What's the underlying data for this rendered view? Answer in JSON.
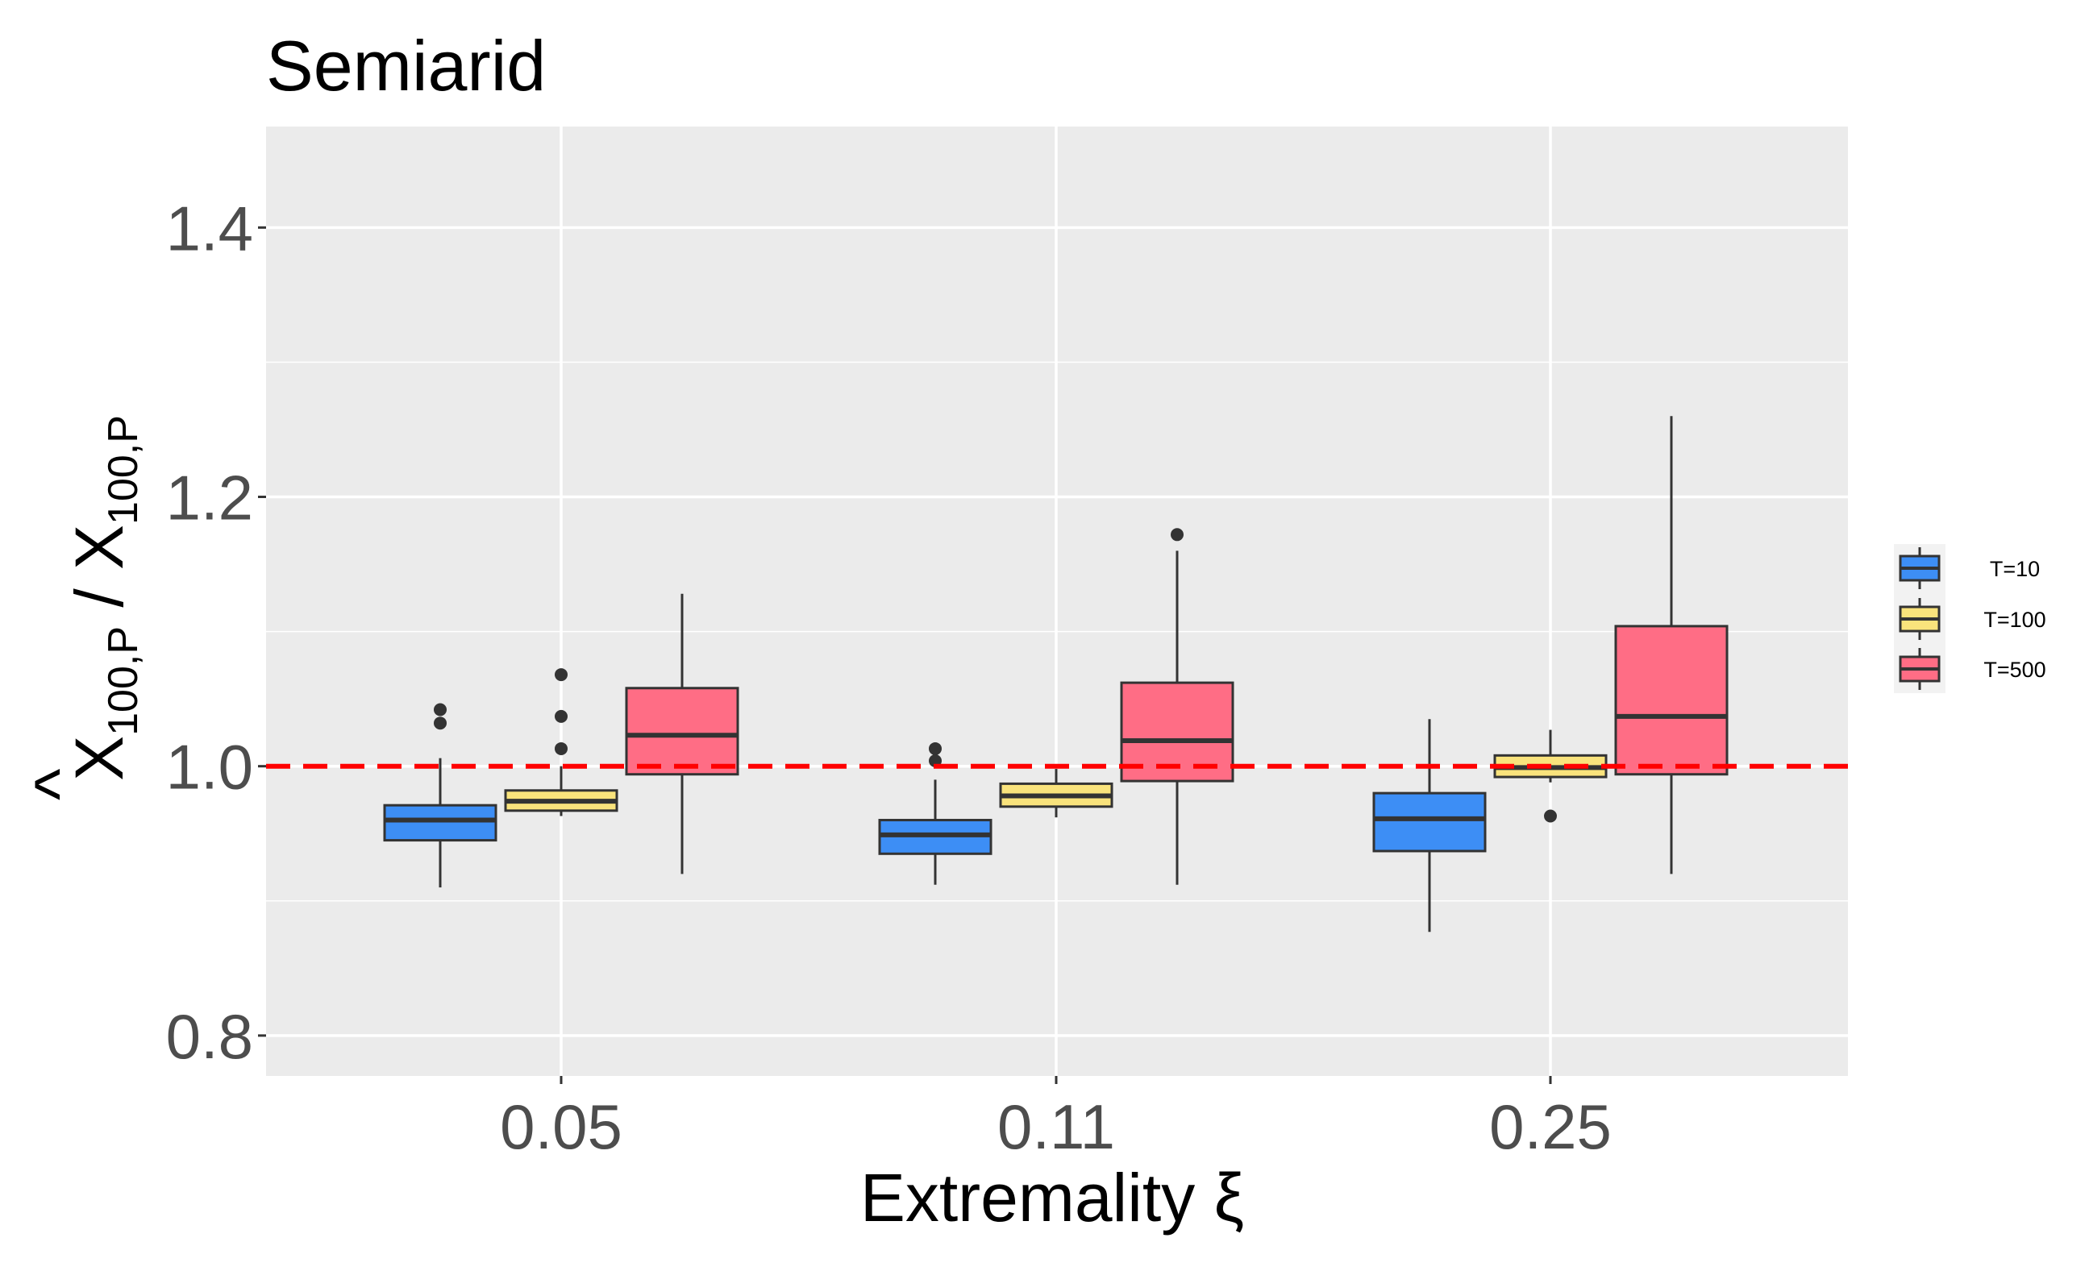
{
  "chart_data": {
    "type": "box",
    "title": "Semiarid",
    "xlabel": "Extremality ξ",
    "ylabel": {
      "main": "X",
      "hat": "^",
      "subscript": "100,P",
      "separator": " / ",
      "denominator": "X",
      "denominator_subscript": "100,P"
    },
    "categories": [
      "0.05",
      "0.11",
      "0.25"
    ],
    "ylim": [
      0.77,
      1.475
    ],
    "yticks": [
      0.8,
      1.0,
      1.2,
      1.4
    ],
    "ytick_labels": [
      "0.8",
      "1.0",
      "1.2",
      "1.4"
    ],
    "reference_line": {
      "y": 1.0,
      "color": "#ff0000",
      "style": "dashed"
    },
    "grid": true,
    "legend_position": "right",
    "series": [
      {
        "name": "T=10",
        "color": "#3d8ef5",
        "boxes": [
          {
            "category": "0.05",
            "min": 0.91,
            "q1": 0.945,
            "median": 0.96,
            "q3": 0.971,
            "max": 1.006,
            "outliers": [
              1.032,
              1.042
            ]
          },
          {
            "category": "0.11",
            "min": 0.912,
            "q1": 0.935,
            "median": 0.949,
            "q3": 0.96,
            "max": 0.99,
            "outliers": [
              1.004,
              1.013
            ]
          },
          {
            "category": "0.25",
            "min": 0.877,
            "q1": 0.937,
            "median": 0.961,
            "q3": 0.98,
            "max": 1.035,
            "outliers": []
          }
        ]
      },
      {
        "name": "T=100",
        "color": "#f9e37c",
        "boxes": [
          {
            "category": "0.05",
            "min": 0.963,
            "q1": 0.967,
            "median": 0.974,
            "q3": 0.982,
            "max": 1.0,
            "outliers": [
              1.013,
              1.037,
              1.068
            ]
          },
          {
            "category": "0.11",
            "min": 0.962,
            "q1": 0.97,
            "median": 0.978,
            "q3": 0.987,
            "max": 0.998,
            "outliers": []
          },
          {
            "category": "0.25",
            "min": 0.988,
            "q1": 0.992,
            "median": 0.999,
            "q3": 1.008,
            "max": 1.027,
            "outliers": [
              0.963
            ]
          }
        ]
      },
      {
        "name": "T=500",
        "color": "#ff6d85",
        "boxes": [
          {
            "category": "0.05",
            "min": 0.92,
            "q1": 0.994,
            "median": 1.023,
            "q3": 1.058,
            "max": 1.128,
            "outliers": []
          },
          {
            "category": "0.11",
            "min": 0.912,
            "q1": 0.989,
            "median": 1.019,
            "q3": 1.062,
            "max": 1.16,
            "outliers": [
              1.172
            ]
          },
          {
            "category": "0.25",
            "min": 0.92,
            "q1": 0.994,
            "median": 1.037,
            "q3": 1.104,
            "max": 1.26,
            "outliers": []
          }
        ]
      }
    ]
  }
}
